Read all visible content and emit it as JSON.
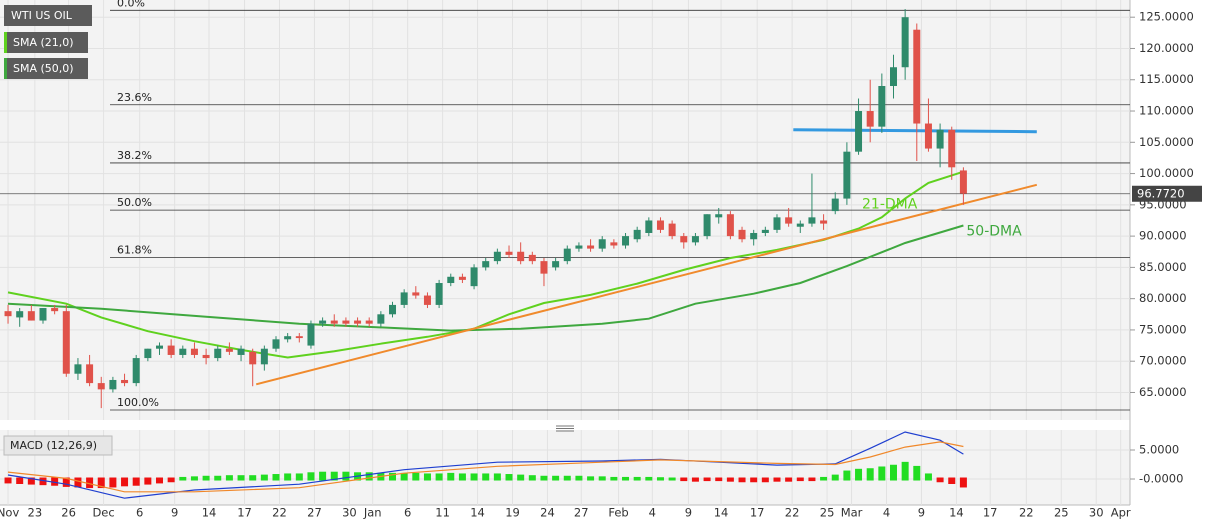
{
  "chart_data": [
    {
      "type": "candlestick",
      "title": "WTI US OIL",
      "up_color": "#2f8a6b",
      "down_color": "#e0524a",
      "candles": {
        "open": [
          78,
          77,
          78,
          76.5,
          78.5,
          78,
          68,
          69.5,
          66.5,
          65.5,
          67,
          66.5,
          70.5,
          72,
          72.5,
          71,
          72,
          71,
          70.5,
          72,
          71,
          71.5,
          69.5,
          72,
          73.5,
          74,
          72.5,
          76,
          76.5,
          76.5,
          76.5,
          76.5,
          76,
          77.5,
          79,
          81,
          80.5,
          79,
          82.5,
          83.5,
          82,
          85,
          86,
          87.5,
          87.5,
          87,
          86,
          85,
          86,
          88,
          88.5,
          88,
          89,
          88.5,
          89.5,
          90.5,
          92.5,
          92,
          90,
          89,
          90,
          93,
          93.5,
          91,
          89.5,
          90.5,
          91,
          93,
          91.5,
          92,
          92.5,
          94,
          96,
          103.5,
          110,
          107.5,
          114,
          117,
          123,
          108,
          104,
          107,
          100.5
        ],
        "high": [
          79,
          78.5,
          79,
          78.5,
          79,
          79,
          70.5,
          71,
          67.5,
          67.5,
          68,
          71,
          72,
          73,
          73.5,
          72.5,
          73,
          72,
          72.5,
          73,
          72.5,
          72,
          72.5,
          74,
          74.5,
          74.5,
          76.5,
          77,
          77.5,
          77,
          77,
          77,
          78,
          79.5,
          81.5,
          82,
          81,
          83,
          84,
          84,
          85.5,
          86.5,
          88,
          88.5,
          89,
          87.5,
          86.5,
          86.5,
          88.5,
          89,
          89.5,
          90,
          89.5,
          90.5,
          91.5,
          93,
          93,
          92.5,
          90.5,
          90.5,
          93.5,
          94.5,
          94,
          91.5,
          91,
          91.5,
          93.5,
          94.5,
          92.5,
          100,
          93.5,
          97,
          105,
          112,
          115,
          116,
          119,
          126.3,
          124,
          112,
          108,
          107.5,
          101
        ],
        "low": [
          76,
          75.5,
          76.5,
          76,
          77.5,
          67.5,
          67,
          66,
          62.5,
          65,
          66,
          66,
          70,
          71,
          70.5,
          70.5,
          70.5,
          69.5,
          70,
          71,
          70,
          66,
          68.5,
          71.5,
          73,
          73,
          72,
          75.5,
          75.5,
          75.5,
          75.5,
          75.5,
          75.5,
          77,
          78.5,
          80,
          78.5,
          78.5,
          82,
          82.5,
          81.5,
          84.5,
          85.5,
          86.5,
          85.5,
          85.5,
          82,
          84.5,
          85.5,
          87.5,
          87.5,
          87.5,
          88,
          88,
          89,
          90,
          90.5,
          89.5,
          88,
          88.5,
          89.5,
          92,
          89.5,
          89,
          88.5,
          90,
          90.5,
          91.5,
          90.5,
          91.5,
          91,
          93.5,
          95,
          103,
          105,
          106.5,
          112,
          115,
          102,
          103.5,
          101,
          99,
          95
        ],
        "close": [
          77.2,
          78,
          76.5,
          78.5,
          78,
          68,
          69.5,
          66.5,
          65.5,
          67,
          66.5,
          70.5,
          72,
          72.5,
          71,
          72,
          71,
          70.5,
          72,
          71.5,
          72,
          69.5,
          72,
          73.5,
          74,
          73.7,
          76,
          76.5,
          76,
          76,
          76,
          76,
          77.5,
          79,
          81,
          80.5,
          79,
          82.5,
          83.5,
          83,
          85,
          86,
          87.5,
          87,
          86,
          86,
          84,
          86,
          88,
          88.5,
          88,
          89.5,
          88.5,
          90,
          91,
          92.5,
          91,
          90,
          89,
          90,
          93.5,
          93.5,
          90,
          89.5,
          90.5,
          91,
          93,
          92,
          92,
          93,
          92,
          96,
          103.5,
          110,
          107.5,
          114,
          117,
          125,
          108,
          104,
          107,
          101,
          96.8
        ]
      },
      "series": [
        {
          "name": "SMA (21,0)",
          "color": "#5fd11e",
          "x": [
            0,
            5,
            8,
            12,
            16,
            20,
            24,
            28,
            32,
            36,
            40,
            43,
            46,
            50,
            54,
            58,
            62,
            66,
            70,
            73,
            75,
            77,
            79,
            82
          ],
          "values": [
            81,
            79.2,
            77,
            74.8,
            73.2,
            71.8,
            70.6,
            71.6,
            72.8,
            73.9,
            75.2,
            77.5,
            79.3,
            80.6,
            82.4,
            84.6,
            86.5,
            87.8,
            89.4,
            91.2,
            93,
            96,
            98.5,
            100.3
          ]
        },
        {
          "name": "SMA (50,0)",
          "color": "#3fa83f",
          "x": [
            0,
            8,
            17,
            25,
            38,
            44,
            51,
            55,
            59,
            64,
            68,
            72,
            77,
            82
          ],
          "values": [
            79.2,
            78.4,
            77.1,
            76,
            74.9,
            75.2,
            76,
            76.8,
            79.2,
            80.8,
            82.5,
            85.2,
            88.9,
            91.7
          ]
        }
      ],
      "lines": [
        {
          "color": "#f08a2c",
          "x": [
            21.3,
            88.3
          ],
          "values": [
            66.3,
            98.2
          ]
        },
        {
          "color": "#3399e0",
          "x": [
            67.4,
            88.3
          ],
          "values": [
            107,
            106.7
          ]
        }
      ],
      "annotations": [
        "21-DMA",
        "50-DMA"
      ],
      "fib_levels": [
        {
          "label": "0.0%",
          "price": 126.1
        },
        {
          "label": "23.6%",
          "price": 111.0
        },
        {
          "label": "38.2%",
          "price": 101.7
        },
        {
          "label": "50.0%",
          "price": 94.15
        },
        {
          "label": "61.8%",
          "price": 86.6
        },
        {
          "label": "100.0%",
          "price": 62.2
        }
      ],
      "last_price": {
        "value": 96.772,
        "label": "96.7720"
      },
      "xlim": [
        -0.69,
        96.3
      ],
      "ylim": [
        60.6,
        127.75
      ],
      "yticks": [
        {
          "value": 65,
          "label": "65.0000"
        },
        {
          "value": 70,
          "label": "70.0000"
        },
        {
          "value": 75,
          "label": "75.0000"
        },
        {
          "value": 80,
          "label": "80.0000"
        },
        {
          "value": 85,
          "label": "85.0000"
        },
        {
          "value": 90,
          "label": "90.0000"
        },
        {
          "value": 95,
          "label": "95.0000"
        },
        {
          "value": 100,
          "label": "100.0000"
        },
        {
          "value": 105,
          "label": "105.0000"
        },
        {
          "value": 110,
          "label": "110.0000"
        },
        {
          "value": 115,
          "label": "115.0000"
        },
        {
          "value": 120,
          "label": "120.0000"
        },
        {
          "value": 125,
          "label": "125.0000"
        }
      ],
      "grid": true
    },
    {
      "type": "macd",
      "title": "MACD (12,26,9)",
      "histogram": [
        -0.5,
        -0.6,
        -0.7,
        -0.8,
        -0.9,
        -1.1,
        -1.2,
        -1.3,
        -1.3,
        -1.2,
        -1.0,
        -0.9,
        -0.7,
        -0.5,
        -0.3,
        0.1,
        0.2,
        0.3,
        0.3,
        0.4,
        0.4,
        0.4,
        0.5,
        0.6,
        0.7,
        0.7,
        0.9,
        1.0,
        1.0,
        1.0,
        0.9,
        0.9,
        0.8,
        0.8,
        0.8,
        0.8,
        0.7,
        0.7,
        0.8,
        0.7,
        0.7,
        0.7,
        0.7,
        0.6,
        0.5,
        0.4,
        0.3,
        0.3,
        0.3,
        0.3,
        0.2,
        0.2,
        0.1,
        0.1,
        0.1,
        0.1,
        0.05,
        0.0,
        -0.1,
        -0.2,
        -0.1,
        -0.1,
        -0.2,
        -0.3,
        -0.3,
        -0.3,
        -0.2,
        -0.2,
        -0.1,
        -0.1,
        0.1,
        0.5,
        1.2,
        1.5,
        1.6,
        1.9,
        2.2,
        2.7,
        2.0,
        0.7,
        -0.3,
        -0.6,
        -1.2
      ],
      "up_color": "#22dd22",
      "down_color": "#ee1111",
      "series": [
        {
          "color": "#1f3fd0",
          "x": [
            0,
            5,
            10,
            16,
            25,
            34,
            42,
            51,
            56,
            61,
            66,
            71,
            74,
            77,
            80,
            82
          ],
          "values": [
            0.7,
            -0.9,
            -3.3,
            -1.9,
            -0.9,
            1.6,
            2.9,
            3.1,
            3.4,
            2.9,
            2.4,
            2.6,
            5.3,
            8.1,
            6.7,
            4.3
          ]
        },
        {
          "color": "#f0882a",
          "x": [
            0,
            5,
            10,
            16,
            25,
            34,
            42,
            51,
            56,
            61,
            66,
            71,
            74,
            77,
            80,
            82
          ],
          "values": [
            1.2,
            0.1,
            -2.2,
            -2.2,
            -1.5,
            1.0,
            2.2,
            2.9,
            3.3,
            3.0,
            2.7,
            2.5,
            3.8,
            5.5,
            6.4,
            5.6
          ]
        }
      ],
      "xlim": [
        -0.69,
        96.3
      ],
      "ylim": [
        -4.48,
        8.45
      ],
      "yticks": [
        {
          "value": 0,
          "label": "-0.0000"
        },
        {
          "value": 5,
          "label": "5.0000"
        }
      ],
      "xticks": [
        {
          "value": 0,
          "label": "Nov"
        },
        {
          "value": 2.3,
          "label": "23"
        },
        {
          "value": 5.2,
          "label": "26"
        },
        {
          "value": 8.2,
          "label": "Dec"
        },
        {
          "value": 11.3,
          "label": "6"
        },
        {
          "value": 14.3,
          "label": "9"
        },
        {
          "value": 17.25,
          "label": "14"
        },
        {
          "value": 20.3,
          "label": "17"
        },
        {
          "value": 23.3,
          "label": "22"
        },
        {
          "value": 26.3,
          "label": "27"
        },
        {
          "value": 29.3,
          "label": "30"
        },
        {
          "value": 31.3,
          "label": "Jan"
        },
        {
          "value": 34.3,
          "label": "6"
        },
        {
          "value": 37.3,
          "label": "11"
        },
        {
          "value": 40.3,
          "label": "14"
        },
        {
          "value": 43.3,
          "label": "19"
        },
        {
          "value": 46.3,
          "label": "24"
        },
        {
          "value": 49.2,
          "label": "27"
        },
        {
          "value": 52.4,
          "label": "Feb"
        },
        {
          "value": 55.3,
          "label": "4"
        },
        {
          "value": 58.4,
          "label": "9"
        },
        {
          "value": 61.2,
          "label": "14"
        },
        {
          "value": 64.3,
          "label": "17"
        },
        {
          "value": 67.3,
          "label": "22"
        },
        {
          "value": 70.3,
          "label": "25"
        },
        {
          "value": 72.4,
          "label": "Mar"
        },
        {
          "value": 75.4,
          "label": "4"
        },
        {
          "value": 78.4,
          "label": "9"
        },
        {
          "value": 81.4,
          "label": "14"
        },
        {
          "value": 84.3,
          "label": "17"
        },
        {
          "value": 87.4,
          "label": "22"
        },
        {
          "value": 90.4,
          "label": "25"
        },
        {
          "value": 93.4,
          "label": "30"
        },
        {
          "value": 95.5,
          "label": "Apr"
        }
      ]
    }
  ]
}
